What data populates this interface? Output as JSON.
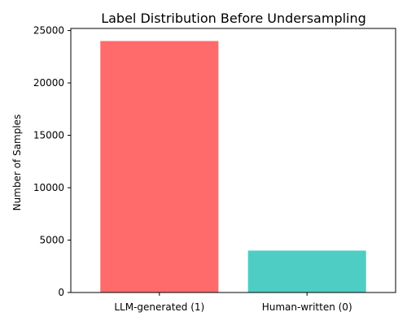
{
  "chart_data": {
    "type": "bar",
    "title": "Label Distribution Before Undersampling",
    "xlabel": "",
    "ylabel": "Number of Samples",
    "categories": [
      "LLM-generated (1)",
      "Human-written (0)"
    ],
    "values": [
      24000,
      4000
    ],
    "colors": [
      "#FF6B6B",
      "#4ECDC4"
    ],
    "ylim": [
      0,
      25200
    ],
    "yticks": [
      0,
      5000,
      10000,
      15000,
      20000,
      25000
    ],
    "ytick_labels": [
      "0",
      "5000",
      "10000",
      "15000",
      "20000",
      "25000"
    ],
    "grid": false,
    "legend": "none"
  }
}
